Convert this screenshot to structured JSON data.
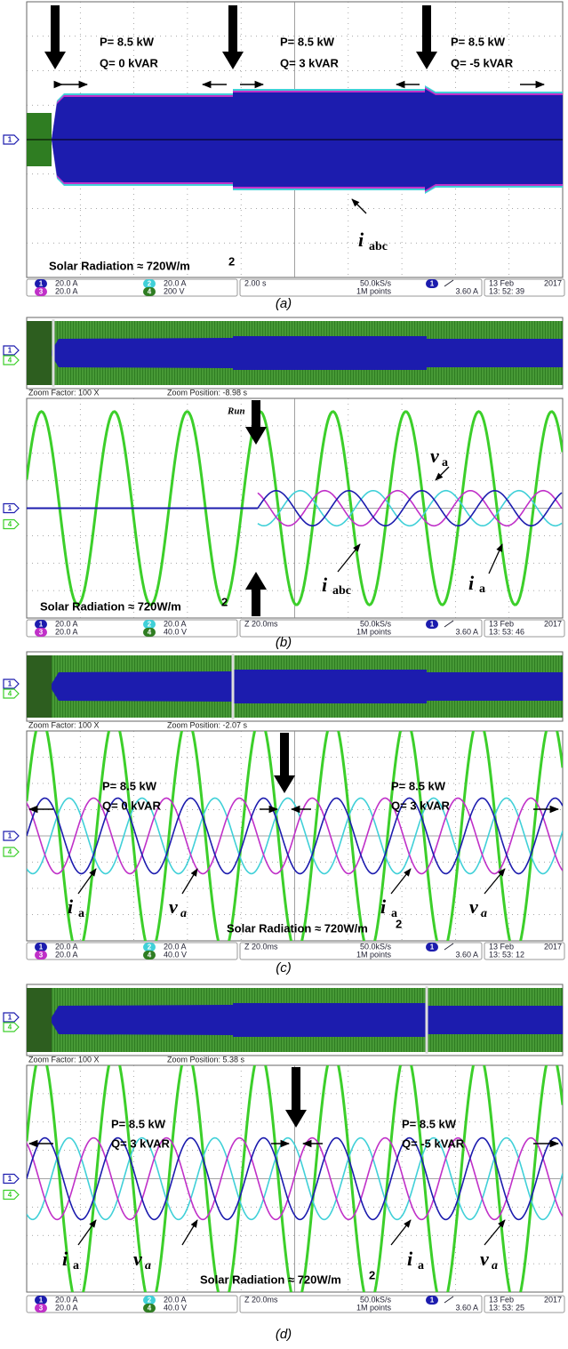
{
  "panels": [
    {
      "caption": "(a)",
      "annotations": [
        "P= 8.5 kW",
        "Q= 0 kVAR",
        "P= 8.5 kW",
        "Q= 3 kVAR",
        "P= 8.5 kW",
        "Q= -5 kVAR",
        "i",
        "abc",
        "Solar Radiation ≈ 720W/m",
        "2"
      ],
      "channel_markers": [
        "1"
      ],
      "status": {
        "ch1": "1",
        "ch1_scale": "20.0 A",
        "ch2": "2",
        "ch2_scale": "20.0 A",
        "ch3": "3",
        "ch3_scale": "20.0 A",
        "ch4": "4",
        "ch4_scale": "200 V",
        "timebase": "2.00 s",
        "sample_rate": "50.0kS/s",
        "record": "1M points",
        "trigger_ch": "1",
        "trigger_level": "3.60 A",
        "date": "13 Feb",
        "year": "2017",
        "time": "13: 52: 39"
      }
    },
    {
      "caption": "(b)",
      "zoom_factor": "Zoom Factor: 100 X",
      "zoom_position": "Zoom Position: -8.98 s",
      "annotations": [
        "Run",
        "v",
        "a",
        "i",
        "abc",
        "i",
        "a",
        "Solar Radiation ≈ 720W/m",
        "2"
      ],
      "channel_markers": [
        "1",
        "4"
      ],
      "status": {
        "ch1": "1",
        "ch1_scale": "20.0 A",
        "ch2": "2",
        "ch2_scale": "20.0 A",
        "ch3": "3",
        "ch3_scale": "20.0 A",
        "ch4": "4",
        "ch4_scale": "40.0 V",
        "timebase": "Z 20.0ms",
        "sample_rate": "50.0kS/s",
        "record": "1M points",
        "trigger_ch": "1",
        "trigger_level": "3.60 A",
        "date": "13 Feb",
        "year": "2017",
        "time": "13: 53: 46"
      }
    },
    {
      "caption": "(c)",
      "zoom_factor": "Zoom Factor: 100 X",
      "zoom_position": "Zoom Position: -2.07 s",
      "annotations": [
        "P= 8.5 kW",
        "Q= 0 kVAR",
        "P= 8.5 kW",
        "Q= 3 kVAR",
        "i",
        "a",
        "v",
        "a",
        "i",
        "a",
        "v",
        "a",
        "Solar Radiation ≈ 720W/m",
        "2"
      ],
      "channel_markers": [
        "1",
        "4"
      ],
      "status": {
        "ch1": "1",
        "ch1_scale": "20.0 A",
        "ch2": "2",
        "ch2_scale": "20.0 A",
        "ch3": "3",
        "ch3_scale": "20.0 A",
        "ch4": "4",
        "ch4_scale": "40.0 V",
        "timebase": "Z 20.0ms",
        "sample_rate": "50.0kS/s",
        "record": "1M points",
        "trigger_ch": "1",
        "trigger_level": "3.60 A",
        "date": "13 Feb",
        "year": "2017",
        "time": "13: 53: 12"
      }
    },
    {
      "caption": "(d)",
      "zoom_factor": "Zoom Factor: 100 X",
      "zoom_position": "Zoom Position: 5.38 s",
      "annotations": [
        "P= 8.5 kW",
        "Q= 3 kVAR",
        "P= 8.5 kW",
        "Q= -5 kVAR",
        "i",
        "a",
        "v",
        "a",
        "i",
        "a",
        "v",
        "a",
        "Solar Radiation ≈ 720W/m",
        "2"
      ],
      "channel_markers": [
        "1",
        "4"
      ],
      "status": {
        "ch1": "1",
        "ch1_scale": "20.0 A",
        "ch2": "2",
        "ch2_scale": "20.0 A",
        "ch3": "3",
        "ch3_scale": "20.0 A",
        "ch4": "4",
        "ch4_scale": "40.0 V",
        "timebase": "Z 20.0ms",
        "sample_rate": "50.0kS/s",
        "record": "1M points",
        "trigger_ch": "1",
        "trigger_level": "3.60 A",
        "date": "13 Feb",
        "year": "2017",
        "time": "13: 53: 25"
      }
    }
  ]
}
